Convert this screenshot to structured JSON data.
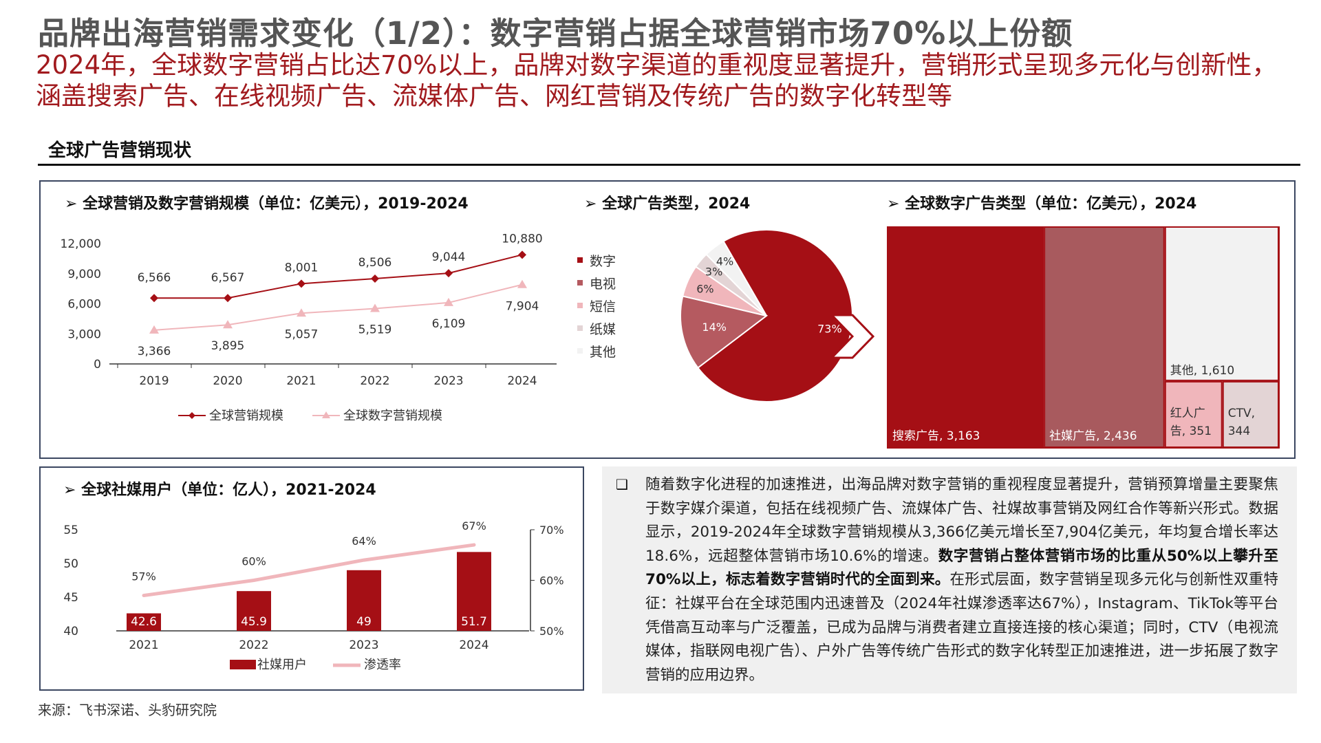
{
  "header": {
    "title": "品牌出海营销需求变化（1/2）：数字营销占据全球营销市场70%以上份额",
    "subtitle": "2024年，全球数字营销占比达70%以上，品牌对数字渠道的重视度显著提升，营销形式呈现多元化与创新性，涵盖搜索广告、在线视频广告、流媒体广告、网红营销及传统广告的数字化转型等"
  },
  "section": {
    "title": "全球广告营销现状"
  },
  "chart_data": [
    {
      "type": "line",
      "title": "全球营销及数字营销规模（单位：亿美元），2019-2024",
      "categories": [
        "2019",
        "2020",
        "2021",
        "2022",
        "2023",
        "2024"
      ],
      "series": [
        {
          "name": "全球营销规模",
          "values": [
            6566,
            6567,
            8001,
            8506,
            9044,
            10880
          ],
          "color": "#a50f15",
          "labels": [
            "6,566",
            "6,567",
            "8,001",
            "8,506",
            "9,044",
            "10,880"
          ]
        },
        {
          "name": "全球数字营销规模",
          "values": [
            3366,
            3895,
            5057,
            5519,
            6109,
            7904
          ],
          "color": "#f0b6bb",
          "labels": [
            "3,366",
            "3,895",
            "5,057",
            "5,519",
            "6,109",
            "7,904"
          ]
        }
      ],
      "ylim": [
        0,
        12000
      ],
      "yticks": [
        0,
        3000,
        6000,
        9000,
        12000
      ],
      "ytick_labels": [
        "0",
        "3,000",
        "6,000",
        "9,000",
        "12,000"
      ],
      "legend": "bottom"
    },
    {
      "type": "pie",
      "title": "全球广告类型，2024",
      "slices": [
        {
          "name": "数字",
          "value": 73,
          "label": "73%",
          "color": "#a50f15"
        },
        {
          "name": "电视",
          "value": 14,
          "label": "14%",
          "color": "#b55a60"
        },
        {
          "name": "短信",
          "value": 6,
          "label": "6%",
          "color": "#f0b6bb"
        },
        {
          "name": "纸媒",
          "value": 3,
          "label": "3%",
          "color": "#e3d4d5"
        },
        {
          "name": "其他",
          "value": 4,
          "label": "4%",
          "color": "#f2f2f2"
        }
      ],
      "legend": "left"
    },
    {
      "type": "treemap",
      "title": "全球数字广告类型（单位：亿美元），2024",
      "items": [
        {
          "name": "搜索广告",
          "value": 3163,
          "label": "搜索广告, 3,163",
          "color": "#a50f15"
        },
        {
          "name": "社媒广告",
          "value": 2436,
          "label": "社媒广告, 2,436",
          "color": "#a85a5e"
        },
        {
          "name": "其他",
          "value": 1610,
          "label": "其他, 1,610",
          "color": "#f2f2f2"
        },
        {
          "name": "红人广告",
          "value": 351,
          "label": "红人广告, 351",
          "label_lines": [
            "红人广",
            "告, 351"
          ],
          "color": "#f0b6bb"
        },
        {
          "name": "CTV",
          "value": 344,
          "label": "CTV, 344",
          "label_lines": [
            "CTV,",
            "344"
          ],
          "color": "#e3d4d5"
        }
      ]
    },
    {
      "type": "bar",
      "title": "全球社媒用户（单位：亿人），2021-2024",
      "categories": [
        "2021",
        "2022",
        "2023",
        "2024"
      ],
      "series": [
        {
          "name": "社媒用户",
          "type": "bar",
          "axis": "left",
          "values": [
            42.6,
            45.9,
            49,
            51.7
          ],
          "labels": [
            "42.6",
            "45.9",
            "49",
            "51.7"
          ],
          "color": "#a50f15"
        },
        {
          "name": "渗透率",
          "type": "line",
          "axis": "right",
          "values": [
            57,
            60,
            64,
            67
          ],
          "labels": [
            "57%",
            "60%",
            "64%",
            "67%"
          ],
          "color": "#f0b6bb"
        }
      ],
      "ylim": [
        40,
        55
      ],
      "yticks": [
        40,
        45,
        50,
        55
      ],
      "y2lim": [
        50,
        70
      ],
      "y2ticks": [
        "50%",
        "60%",
        "70%"
      ],
      "legend": "bottom"
    }
  ],
  "textbox": {
    "bullet": "❑",
    "p1": "随着数字化进程的加速推进，出海品牌对数字营销的重视程度显著提升，营销预算增量主要聚焦于数字媒介渠道，包括在线视频广告、流媒体广告、社媒故事营销及网红合作等新兴形式。数据显示，2019-2024年全球数字营销规模从3,366亿美元增长至7,904亿美元，年均复合增长率达18.6%，远超整体营销市场10.6%的增速。",
    "p2_bold": "数字营销占整体营销市场的比重从50%以上攀升至70%以上，标志着数字营销时代的全面到来。",
    "p3": "在形式层面，数字营销呈现多元化与创新性双重特征：社媒平台在全球范围内迅速普及（2024年社媒渗透率达67%），Instagram、TikTok等平台凭借高互动率与广泛覆盖，已成为品牌与消费者建立直接连接的核心渠道；同时，CTV（电视流媒体，指联网电视广告）、户外广告等传统广告形式的数字化转型正加速推进，进一步拓展了数字营销的应用边界。"
  },
  "source": "来源：飞书深诺、头豹研究院",
  "icons": {
    "arrow": "chevron-right-icon",
    "bullet_marker": "triangle-bullet-icon"
  }
}
